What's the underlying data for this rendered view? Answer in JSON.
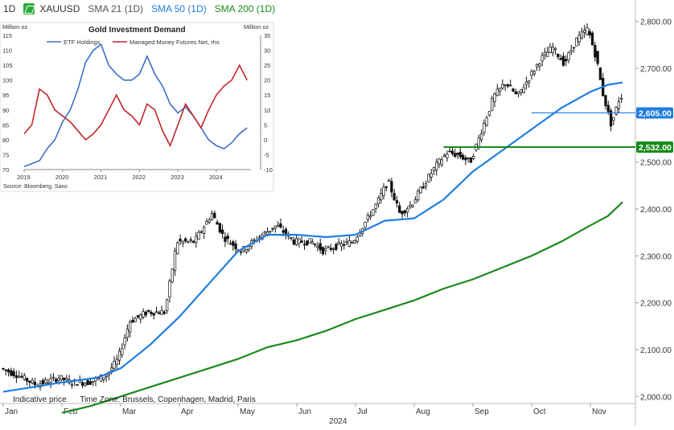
{
  "header": {
    "timeframe": "1D",
    "symbol": "XAUUSD",
    "sma21": "SMA 21 (1D)",
    "sma50": "SMA 50 (1D)",
    "sma200": "SMA 200 (1D)",
    "sma21_color": "#555555",
    "sma50_color": "#1f7de0",
    "sma200_color": "#1a8a1a"
  },
  "footer": {
    "indicative": "Indicative price",
    "timezone": "Time Zone: Brussels, Copenhagen, Madrid, Paris"
  },
  "chart_data": [
    {
      "type": "line",
      "chart": "main",
      "year_label": "2024",
      "x_ticks": [
        "Jan",
        "Feb",
        "Mar",
        "Apr",
        "May",
        "Jun",
        "Jul",
        "Aug",
        "Sep",
        "Oct",
        "Nov"
      ],
      "y_ticks": [
        "2,000.00",
        "2,100.00",
        "2,200.00",
        "2,300.00",
        "2,400.00",
        "2,500.00",
        "2,600.00",
        "2,700.00",
        "2,800.00"
      ],
      "ylim": [
        1985,
        2815
      ],
      "price_tags": [
        {
          "value": 2605,
          "label": "2,605.00",
          "color": "#1f7de0"
        },
        {
          "value": 2532,
          "label": "2,532.00",
          "color": "#1a8a1a"
        }
      ],
      "price_series": {
        "name": "XAUUSD",
        "x_months": [
          0,
          0.3,
          0.6,
          1.0,
          1.2,
          1.5,
          1.8,
          2.0,
          2.2,
          2.5,
          2.8,
          3.0,
          3.3,
          3.6,
          3.8,
          4.1,
          4.4,
          4.7,
          5.0,
          5.3,
          5.5,
          5.7,
          6.0,
          6.2,
          6.4,
          6.6,
          6.8,
          7.0,
          7.2,
          7.4,
          7.6,
          7.8,
          8.0,
          8.2,
          8.4,
          8.6,
          8.8,
          9.0,
          9.2,
          9.4,
          9.6,
          9.8,
          10.0,
          10.15,
          10.25,
          10.4,
          10.55
        ],
        "values": [
          2060,
          2045,
          2025,
          2040,
          2030,
          2030,
          2045,
          2080,
          2160,
          2180,
          2180,
          2330,
          2330,
          2390,
          2340,
          2310,
          2340,
          2365,
          2330,
          2330,
          2310,
          2320,
          2330,
          2370,
          2410,
          2460,
          2390,
          2410,
          2450,
          2490,
          2520,
          2515,
          2500,
          2570,
          2640,
          2670,
          2640,
          2680,
          2720,
          2745,
          2710,
          2760,
          2785,
          2720,
          2650,
          2580,
          2640
        ]
      },
      "series": [
        {
          "name": "SMA 50 (1D)",
          "color": "#1f7de0",
          "x_months": [
            0,
            1.0,
            1.6,
            2.0,
            2.5,
            3.0,
            3.5,
            4.0,
            4.5,
            5.0,
            5.5,
            6.0,
            6.5,
            7.0,
            7.5,
            8.0,
            8.5,
            9.0,
            9.5,
            10.0,
            10.3,
            10.55
          ],
          "values": [
            2010,
            2030,
            2040,
            2060,
            2110,
            2170,
            2240,
            2310,
            2345,
            2345,
            2340,
            2345,
            2375,
            2380,
            2420,
            2480,
            2525,
            2570,
            2615,
            2650,
            2665,
            2670
          ]
        },
        {
          "name": "SMA 200 (1D)",
          "color": "#1a8a1a",
          "x_months": [
            1.0,
            1.5,
            2.0,
            2.5,
            3.0,
            3.5,
            4.0,
            4.5,
            5.0,
            5.5,
            6.0,
            6.5,
            7.0,
            7.5,
            8.0,
            8.5,
            9.0,
            9.5,
            10.0,
            10.3,
            10.55
          ],
          "values": [
            1965,
            1980,
            2000,
            2020,
            2040,
            2060,
            2080,
            2105,
            2120,
            2140,
            2165,
            2185,
            2205,
            2230,
            2250,
            2275,
            2300,
            2330,
            2365,
            2385,
            2415
          ]
        }
      ],
      "hlines": [
        {
          "value": 2605,
          "color": "#1f7de0",
          "from_month": 9.0
        },
        {
          "value": 2532,
          "color": "#1a8a1a",
          "from_month": 7.5
        }
      ]
    },
    {
      "type": "line",
      "chart": "inset",
      "title": "Gold Investment Demand",
      "ylabel_left": "Million oz",
      "ylabel_right": "Million oz",
      "source": "Source: Bloomberg, Saxo",
      "x_ticks": [
        "2019",
        "2020",
        "2021",
        "2022",
        "2023",
        "2024"
      ],
      "y_left_ticks": [
        "70",
        "75",
        "80",
        "85",
        "90",
        "95",
        "100",
        "105",
        "110",
        "115"
      ],
      "y_right_ticks": [
        "-10",
        "-5",
        "0",
        "5",
        "10",
        "15",
        "20",
        "25",
        "30",
        "35"
      ],
      "ylim_left": [
        70,
        115
      ],
      "ylim_right": [
        -10,
        35
      ],
      "series": [
        {
          "name": "ETF Holdings",
          "axis": "left",
          "color": "#3a6fc4",
          "x_years": [
            2019,
            2019.2,
            2019.4,
            2019.6,
            2019.8,
            2020,
            2020.2,
            2020.4,
            2020.6,
            2020.8,
            2021,
            2021.2,
            2021.4,
            2021.6,
            2021.8,
            2022,
            2022.2,
            2022.4,
            2022.6,
            2022.8,
            2023,
            2023.2,
            2023.4,
            2023.6,
            2023.8,
            2024,
            2024.2,
            2024.4,
            2024.6,
            2024.8
          ],
          "values": [
            71,
            72,
            73,
            77,
            80,
            86,
            90,
            97,
            106,
            110,
            112,
            105,
            102,
            100,
            100,
            102,
            108,
            102,
            98,
            92,
            89,
            91,
            88,
            84,
            80,
            78,
            77,
            79,
            82,
            84
          ]
        },
        {
          "name": "Managed Money Futures Net, rhs",
          "axis": "right",
          "color": "#c0282d",
          "x_years": [
            2019,
            2019.2,
            2019.4,
            2019.6,
            2019.8,
            2020,
            2020.2,
            2020.4,
            2020.6,
            2020.8,
            2021,
            2021.2,
            2021.4,
            2021.6,
            2021.8,
            2022,
            2022.2,
            2022.4,
            2022.6,
            2022.8,
            2023,
            2023.2,
            2023.4,
            2023.6,
            2023.8,
            2024,
            2024.2,
            2024.4,
            2024.6,
            2024.8
          ],
          "values": [
            2,
            5,
            17,
            15,
            10,
            8,
            6,
            3,
            0,
            2,
            5,
            10,
            15,
            10,
            8,
            5,
            12,
            10,
            3,
            -2,
            5,
            12,
            8,
            4,
            10,
            15,
            18,
            20,
            25,
            20
          ]
        }
      ]
    }
  ]
}
